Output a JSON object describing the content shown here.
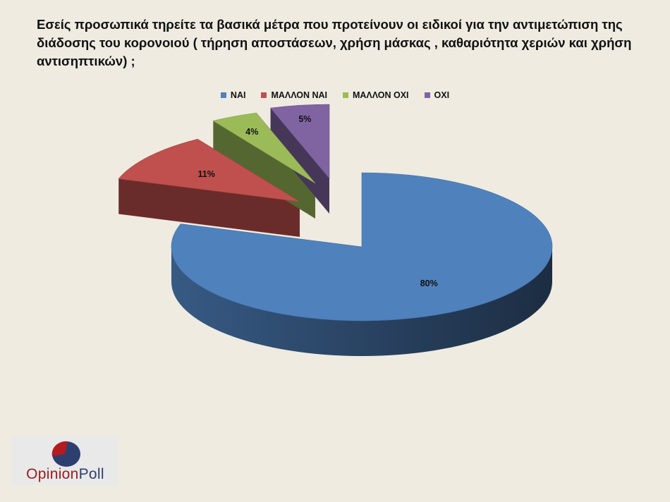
{
  "title": "Εσείς προσωπικά τηρείτε τα βασικά μέτρα που προτείνουν οι ειδικοί για την αντιμετώπιση της διάδοσης του κορονοιού ( τήρηση αποστάσεων, χρήση μάσκας , καθαριότητα χεριών και χρήση αντισηπτικών) ;",
  "logo": {
    "text": "OpinionPoll"
  },
  "chart_data": {
    "type": "pie",
    "title": "Εσείς προσωπικά τηρείτε τα βασικά μέτρα που προτείνουν οι ειδικοί για την αντιμετώπιση της διάδοσης του κορονοιού ( τήρηση αποστάσεων, χρήση μάσκας , καθαριότητα χεριών και χρήση αντισηπτικών) ;",
    "categories": [
      "ΝΑΙ",
      "ΜΑΛΛΟΝ ΝΑΙ",
      "ΜΑΛΛΟΝ ΟΧΙ",
      "ΟΧΙ"
    ],
    "values": [
      80,
      11,
      4,
      5
    ],
    "labels": [
      "80%",
      "11%",
      "4%",
      "5%"
    ],
    "colors": [
      "#4f81bd",
      "#c0504d",
      "#9bbb59",
      "#8064a2"
    ],
    "legend_position": "top",
    "style": "3d-exploded"
  }
}
